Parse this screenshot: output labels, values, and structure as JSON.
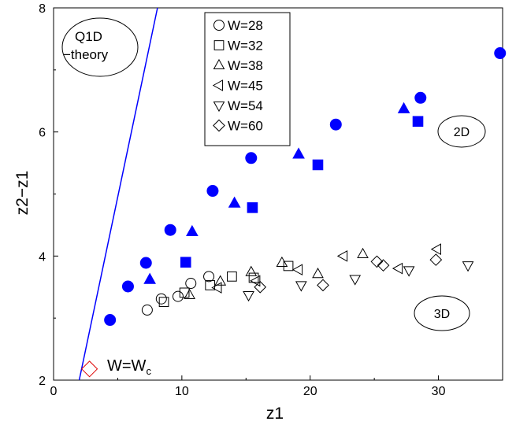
{
  "chart_data": {
    "type": "scatter",
    "title": "",
    "xlabel": "z1",
    "ylabel": "z2−z1",
    "xlim": [
      0,
      35
    ],
    "ylim": [
      2,
      8
    ],
    "xticks": [
      0,
      10,
      20,
      30
    ],
    "yticks": [
      2,
      4,
      6,
      8
    ],
    "grid": false,
    "legend_position": "top-center",
    "legend": [
      {
        "label": "W=28",
        "marker": "circle"
      },
      {
        "label": "W=32",
        "marker": "square"
      },
      {
        "label": "W=38",
        "marker": "triangle-up"
      },
      {
        "label": "W=45",
        "marker": "triangle-left"
      },
      {
        "label": "W=54",
        "marker": "triangle-down"
      },
      {
        "label": "W=60",
        "marker": "diamond"
      }
    ],
    "series": [
      {
        "name": "W=28",
        "marker": "circle",
        "filled": false,
        "color": "#000000",
        "points": [
          [
            7.3,
            3.13
          ],
          [
            8.4,
            3.31
          ],
          [
            9.7,
            3.35
          ],
          [
            10.7,
            3.56
          ],
          [
            12.1,
            3.67
          ]
        ]
      },
      {
        "name": "W=32",
        "marker": "square",
        "filled": false,
        "color": "#000000",
        "points": [
          [
            8.6,
            3.26
          ],
          [
            10.2,
            3.41
          ],
          [
            12.2,
            3.53
          ],
          [
            13.9,
            3.67
          ],
          [
            15.6,
            3.65
          ],
          [
            18.3,
            3.84
          ]
        ]
      },
      {
        "name": "W=38",
        "marker": "triangle-up",
        "filled": false,
        "color": "#000000",
        "points": [
          [
            10.6,
            3.37
          ],
          [
            13.0,
            3.59
          ],
          [
            15.4,
            3.74
          ],
          [
            17.8,
            3.89
          ],
          [
            20.6,
            3.71
          ],
          [
            24.1,
            4.03
          ]
        ]
      },
      {
        "name": "W=45",
        "marker": "triangle-left",
        "filled": false,
        "color": "#000000",
        "points": [
          [
            12.8,
            3.49
          ],
          [
            15.8,
            3.6
          ],
          [
            19.1,
            3.78
          ],
          [
            22.6,
            4.0
          ],
          [
            26.9,
            3.8
          ],
          [
            29.9,
            4.11
          ]
        ]
      },
      {
        "name": "W=54",
        "marker": "triangle-down",
        "filled": false,
        "color": "#000000",
        "points": [
          [
            15.2,
            3.37
          ],
          [
            19.3,
            3.53
          ],
          [
            23.5,
            3.63
          ],
          [
            27.7,
            3.77
          ],
          [
            32.3,
            3.85
          ]
        ]
      },
      {
        "name": "W=60",
        "marker": "diamond",
        "filled": false,
        "color": "#000000",
        "points": [
          [
            16.1,
            3.5
          ],
          [
            21.0,
            3.53
          ],
          [
            25.2,
            3.91
          ],
          [
            25.7,
            3.85
          ],
          [
            29.8,
            3.94
          ]
        ]
      },
      {
        "marker": "circle",
        "filled": true,
        "color": "#0000ff",
        "points": [
          [
            4.4,
            2.97
          ],
          [
            5.8,
            3.51
          ],
          [
            7.2,
            3.89
          ],
          [
            9.1,
            4.42
          ],
          [
            12.4,
            5.05
          ],
          [
            15.4,
            5.58
          ],
          [
            22.0,
            6.12
          ],
          [
            28.6,
            6.55
          ],
          [
            34.8,
            7.27
          ]
        ]
      },
      {
        "marker": "square",
        "filled": true,
        "color": "#0000ff",
        "points": [
          [
            10.3,
            3.9
          ],
          [
            15.5,
            4.78
          ],
          [
            20.6,
            5.47
          ],
          [
            28.4,
            6.17
          ]
        ]
      },
      {
        "marker": "triangle-up",
        "filled": true,
        "color": "#0000ff",
        "points": [
          [
            7.5,
            3.62
          ],
          [
            10.8,
            4.39
          ],
          [
            14.1,
            4.85
          ],
          [
            19.1,
            5.64
          ],
          [
            27.3,
            6.37
          ]
        ]
      },
      {
        "marker": "diamond",
        "filled": false,
        "color": "#dd0000",
        "points": [
          [
            2.8,
            2.18
          ]
        ]
      }
    ],
    "lines": [
      {
        "name": "Q1D theory",
        "color": "#0000ff",
        "points": [
          [
            2.0,
            2.0
          ],
          [
            8.1,
            8.0
          ]
        ]
      }
    ],
    "annotations": [
      {
        "text_lines": [
          "Q1D",
          "−theory"
        ],
        "shape": "ellipse"
      },
      {
        "text_lines": [
          "2D"
        ],
        "shape": "ellipse"
      },
      {
        "text_lines": [
          "3D"
        ],
        "shape": "ellipse"
      },
      {
        "text_lines": [
          "W=W",
          "c"
        ],
        "shape": "none",
        "subscript_second": true
      }
    ]
  }
}
